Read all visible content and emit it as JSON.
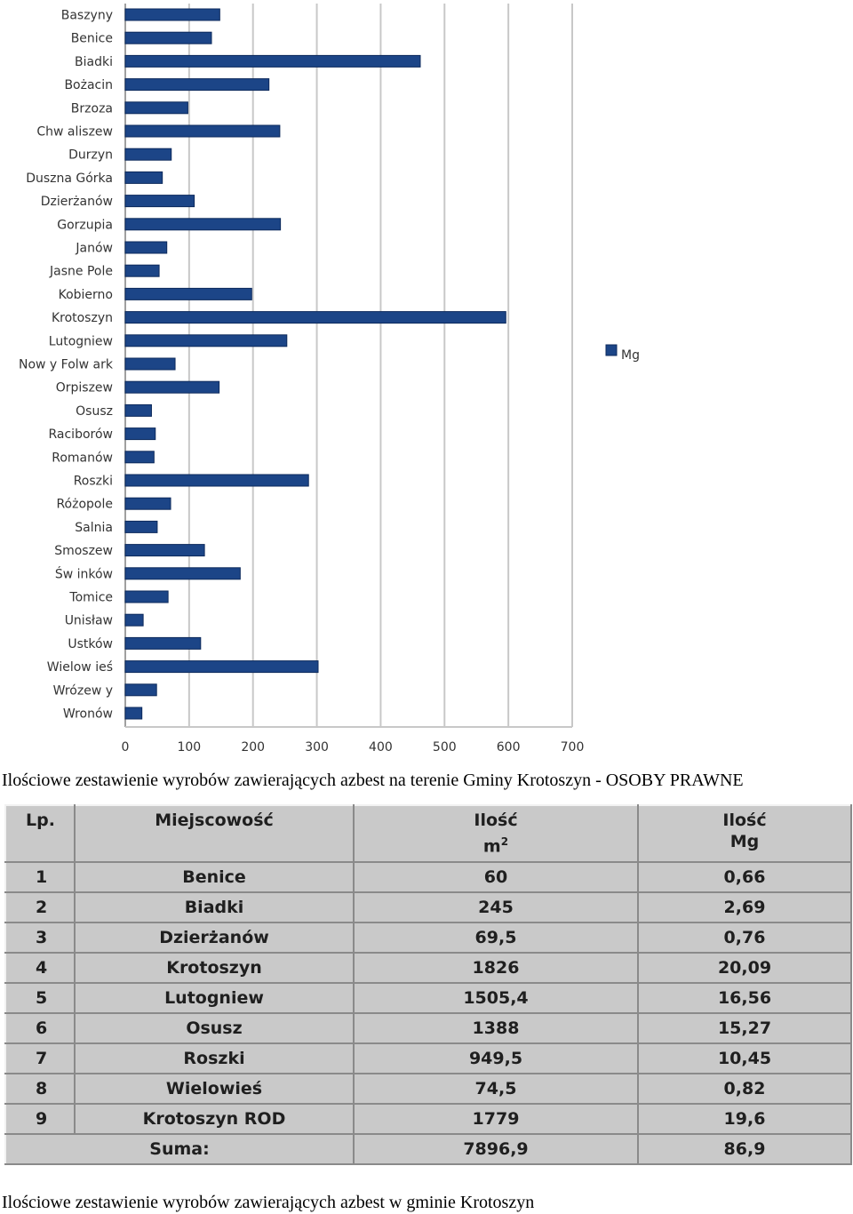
{
  "chart_data": {
    "type": "bar",
    "orientation": "horizontal",
    "categories": [
      "Baszyny",
      "Benice",
      "Biadki",
      "Bożacin",
      "Brzoza",
      "Chw aliszew",
      "Durzyn",
      "Duszna Górka",
      "Dzierżanów",
      "Gorzupia",
      "Janów",
      "Jasne Pole",
      "Kobierno",
      "Krotoszyn",
      "Lutogniew",
      "Now y Folw ark",
      "Orpiszew",
      "Osusz",
      "Raciborów",
      "Romanów",
      "Roszki",
      "Różopole",
      "Salnia",
      "Smoszew",
      "Św inków",
      "Tomice",
      "Unisław",
      "Ustków",
      "Wielow ieś",
      "Wrózew y",
      "Wronów"
    ],
    "series": [
      {
        "name": "Mg",
        "values": [
          148,
          135,
          462,
          225,
          98,
          242,
          72,
          58,
          108,
          243,
          65,
          53,
          198,
          596,
          253,
          78,
          147,
          41,
          47,
          45,
          287,
          71,
          50,
          124,
          180,
          67,
          28,
          118,
          302,
          49,
          26
        ]
      }
    ],
    "xlim": [
      0,
      700
    ],
    "xticks": [
      0,
      100,
      200,
      300,
      400,
      500,
      600,
      700
    ],
    "grid": true,
    "legend_position": "right",
    "bar_color": "#1c4587"
  },
  "caption1": "Ilościowe zestawienie wyrobów zawierających azbest na terenie Gminy Krotoszyn - OSOBY PRAWNE",
  "caption2": "Ilościowe zestawienie wyrobów zawierających azbest w gminie Krotoszyn",
  "table": {
    "headers": {
      "lp": "Lp.",
      "place": "Miejscowość",
      "m2_line1": "Ilość",
      "m2_line2": "m",
      "m2_sup": "2",
      "mg_line1": "Ilość",
      "mg_line2": "Mg"
    },
    "rows": [
      {
        "lp": "1",
        "place": "Benice",
        "m2": "60",
        "mg": "0,66"
      },
      {
        "lp": "2",
        "place": "Biadki",
        "m2": "245",
        "mg": "2,69"
      },
      {
        "lp": "3",
        "place": "Dzierżanów",
        "m2": "69,5",
        "mg": "0,76"
      },
      {
        "lp": "4",
        "place": "Krotoszyn",
        "m2": "1826",
        "mg": "20,09"
      },
      {
        "lp": "5",
        "place": "Lutogniew",
        "m2": "1505,4",
        "mg": "16,56"
      },
      {
        "lp": "6",
        "place": "Osusz",
        "m2": "1388",
        "mg": "15,27"
      },
      {
        "lp": "7",
        "place": "Roszki",
        "m2": "949,5",
        "mg": "10,45"
      },
      {
        "lp": "8",
        "place": "Wielowieś",
        "m2": "74,5",
        "mg": "0,82"
      },
      {
        "lp": "9",
        "place": "Krotoszyn ROD",
        "m2": "1779",
        "mg": "19,6"
      }
    ],
    "sum": {
      "label": "Suma:",
      "m2": "7896,9",
      "mg": "86,9"
    }
  }
}
